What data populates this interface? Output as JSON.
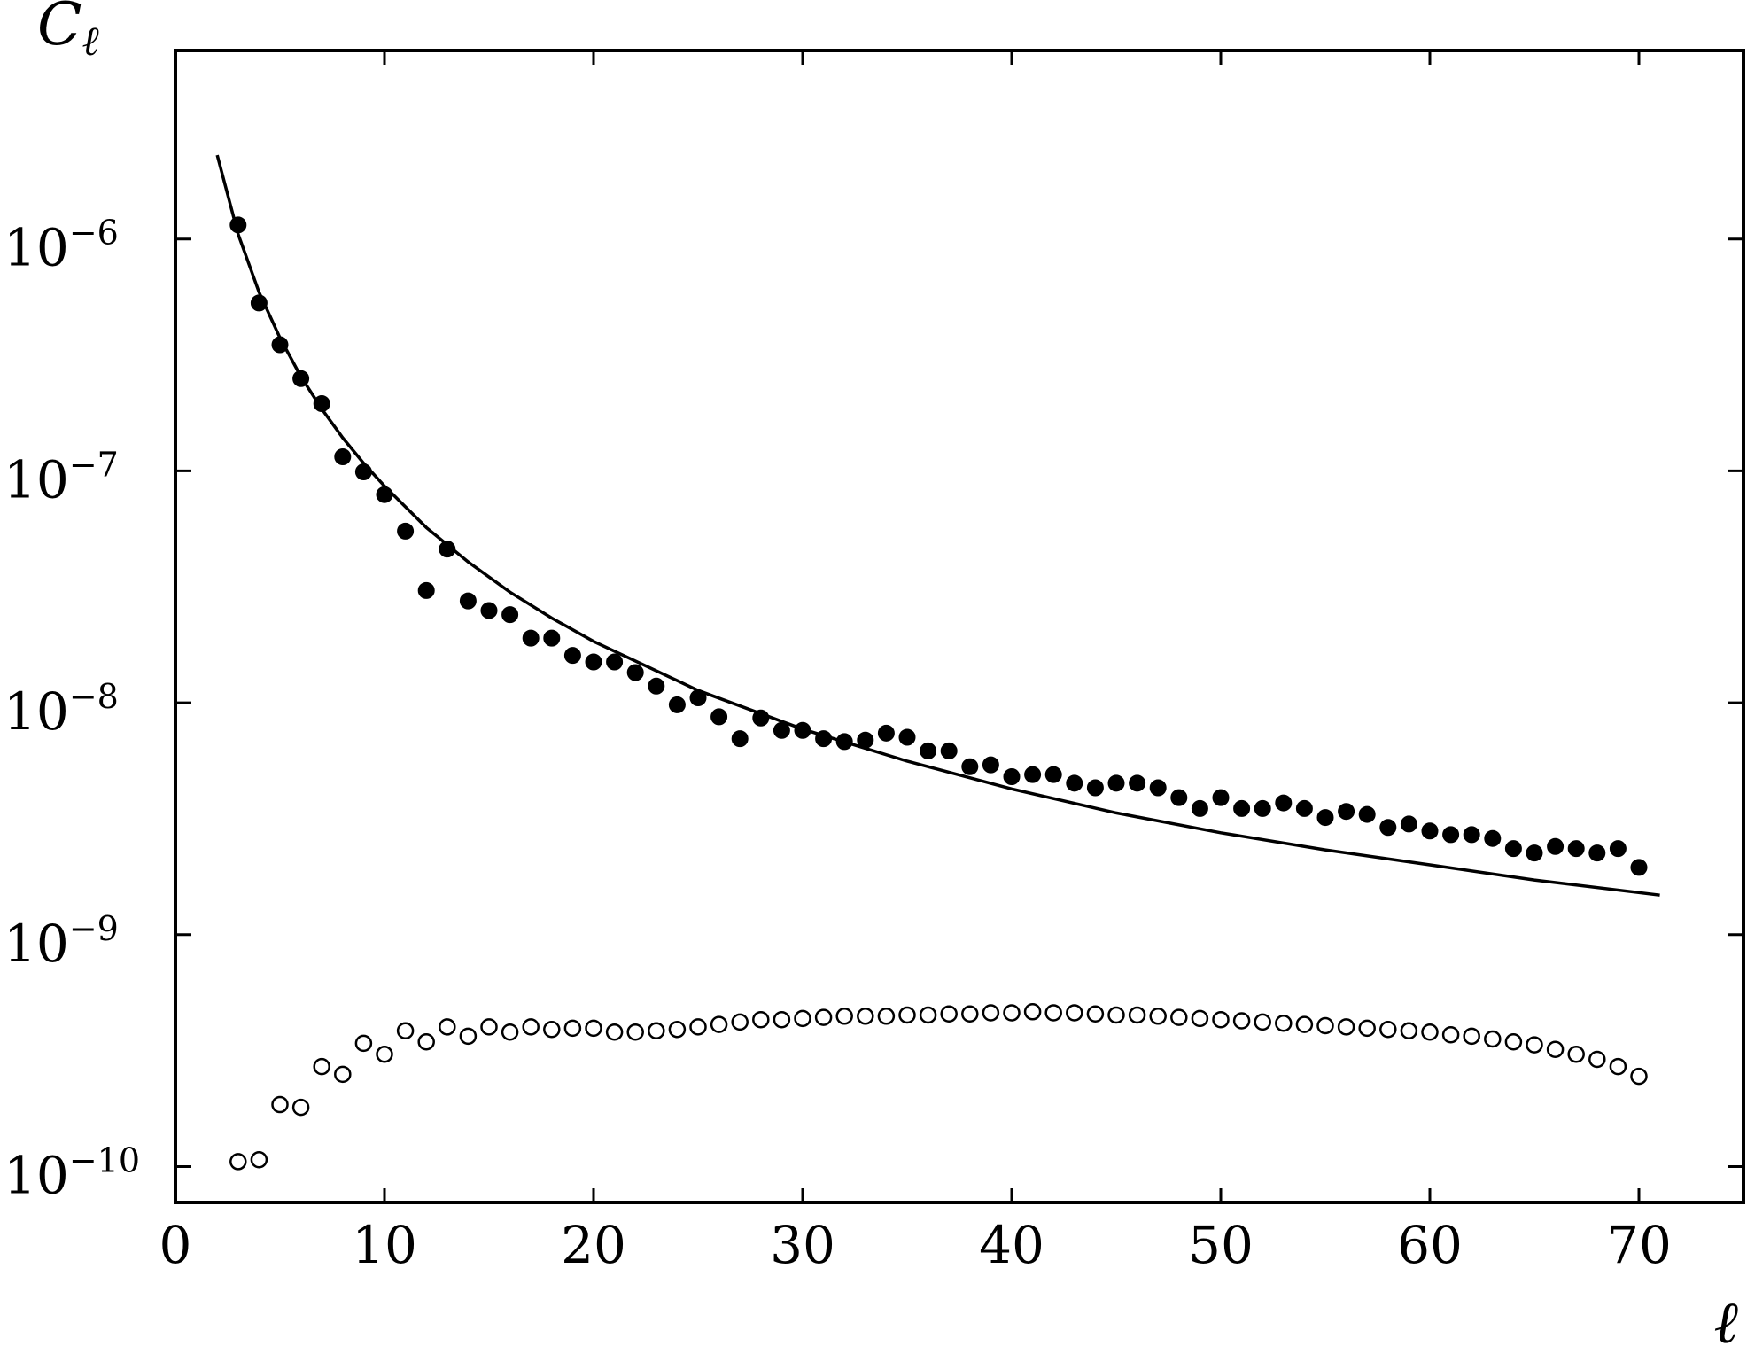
{
  "chart_data": {
    "type": "scatter",
    "title": "",
    "xlabel": "ℓ",
    "ylabel": "C",
    "ylabel_subscript": "ℓ",
    "xlim": [
      0,
      75
    ],
    "ylim": [
      7e-11,
      6.5e-06
    ],
    "yscale": "log",
    "grid": false,
    "legend": "none",
    "x_ticks": [
      0,
      10,
      20,
      30,
      40,
      50,
      60,
      70
    ],
    "x_tick_labels": [
      "0",
      "10",
      "20",
      "30",
      "40",
      "50",
      "60",
      "70"
    ],
    "y_ticks": [
      1e-10,
      1e-09,
      1e-08,
      1e-07,
      1e-06
    ],
    "y_tick_labels": [
      {
        "base": "10",
        "exp": "−10"
      },
      {
        "base": "10",
        "exp": "−9"
      },
      {
        "base": "10",
        "exp": "−8"
      },
      {
        "base": "10",
        "exp": "−7"
      },
      {
        "base": "10",
        "exp": "−6"
      }
    ],
    "series": [
      {
        "style": "line",
        "color": "#000000",
        "x": [
          2,
          3,
          4,
          5,
          6,
          7,
          8,
          9,
          10,
          12,
          14,
          16,
          18,
          20,
          25,
          30,
          35,
          40,
          45,
          50,
          55,
          60,
          65,
          71
        ],
        "y": [
          2.3e-06,
          1.05e-06,
          5.9e-07,
          3.75e-07,
          2.55e-07,
          1.85e-07,
          1.39e-07,
          1.08e-07,
          8.6e-08,
          5.7e-08,
          4.05e-08,
          3e-08,
          2.32e-08,
          1.84e-08,
          1.13e-08,
          7.7e-09,
          5.6e-09,
          4.25e-09,
          3.35e-09,
          2.75e-09,
          2.32e-09,
          2e-09,
          1.72e-09,
          1.48e-09
        ]
      },
      {
        "style": "filled-circle",
        "color": "#000000",
        "x": [
          3,
          4,
          5,
          6,
          7,
          8,
          9,
          10,
          11,
          12,
          13,
          14,
          15,
          16,
          17,
          18,
          19,
          20,
          21,
          22,
          23,
          24,
          25,
          26,
          27,
          28,
          29,
          30,
          31,
          32,
          33,
          34,
          35,
          36,
          37,
          38,
          39,
          40,
          41,
          42,
          43,
          44,
          45,
          46,
          47,
          48,
          49,
          50,
          51,
          52,
          53,
          54,
          55,
          56,
          57,
          58,
          59,
          60,
          61,
          62,
          63,
          64,
          65,
          66,
          67,
          68,
          69,
          70
        ],
        "y": [
          1.15e-06,
          5.3e-07,
          3.5e-07,
          2.5e-07,
          1.95e-07,
          1.15e-07,
          9.9e-08,
          7.9e-08,
          5.5e-08,
          3.05e-08,
          4.6e-08,
          2.75e-08,
          2.5e-08,
          2.4e-08,
          1.9e-08,
          1.9e-08,
          1.6e-08,
          1.5e-08,
          1.5e-08,
          1.35e-08,
          1.18e-08,
          9.8e-09,
          1.05e-08,
          8.7e-09,
          7e-09,
          8.6e-09,
          7.6e-09,
          7.6e-09,
          7e-09,
          6.8e-09,
          6.9e-09,
          7.4e-09,
          7.1e-09,
          6.2e-09,
          6.2e-09,
          5.3e-09,
          5.4e-09,
          4.8e-09,
          4.9e-09,
          4.9e-09,
          4.5e-09,
          4.3e-09,
          4.5e-09,
          4.5e-09,
          4.3e-09,
          3.9e-09,
          3.5e-09,
          3.9e-09,
          3.5e-09,
          3.5e-09,
          3.7e-09,
          3.5e-09,
          3.2e-09,
          3.4e-09,
          3.3e-09,
          2.9e-09,
          3e-09,
          2.8e-09,
          2.7e-09,
          2.7e-09,
          2.6e-09,
          2.35e-09,
          2.25e-09,
          2.4e-09,
          2.35e-09,
          2.25e-09,
          2.35e-09,
          1.95e-09
        ]
      },
      {
        "style": "open-circle",
        "color": "#000000",
        "x": [
          3,
          4,
          5,
          6,
          7,
          8,
          9,
          10,
          11,
          12,
          13,
          14,
          15,
          16,
          17,
          18,
          19,
          20,
          21,
          22,
          23,
          24,
          25,
          26,
          27,
          28,
          29,
          30,
          31,
          32,
          33,
          34,
          35,
          36,
          37,
          38,
          39,
          40,
          41,
          42,
          43,
          44,
          45,
          46,
          47,
          48,
          49,
          50,
          51,
          52,
          53,
          54,
          55,
          56,
          57,
          58,
          59,
          60,
          61,
          62,
          63,
          64,
          65,
          66,
          67,
          68,
          69,
          70
        ],
        "y": [
          1.05e-10,
          1.07e-10,
          1.85e-10,
          1.8e-10,
          2.7e-10,
          2.5e-10,
          3.4e-10,
          3.05e-10,
          3.85e-10,
          3.45e-10,
          4e-10,
          3.65e-10,
          4e-10,
          3.8e-10,
          4e-10,
          3.9e-10,
          3.95e-10,
          3.95e-10,
          3.8e-10,
          3.8e-10,
          3.85e-10,
          3.9e-10,
          4e-10,
          4.1e-10,
          4.2e-10,
          4.3e-10,
          4.3e-10,
          4.35e-10,
          4.4e-10,
          4.45e-10,
          4.45e-10,
          4.45e-10,
          4.5e-10,
          4.5e-10,
          4.55e-10,
          4.55e-10,
          4.6e-10,
          4.6e-10,
          4.65e-10,
          4.6e-10,
          4.6e-10,
          4.55e-10,
          4.5e-10,
          4.5e-10,
          4.45e-10,
          4.4e-10,
          4.35e-10,
          4.3e-10,
          4.25e-10,
          4.2e-10,
          4.15e-10,
          4.1e-10,
          4.05e-10,
          4e-10,
          3.95e-10,
          3.9e-10,
          3.85e-10,
          3.8e-10,
          3.7e-10,
          3.65e-10,
          3.55e-10,
          3.45e-10,
          3.35e-10,
          3.2e-10,
          3.05e-10,
          2.9e-10,
          2.7e-10,
          2.45e-10
        ]
      }
    ]
  }
}
